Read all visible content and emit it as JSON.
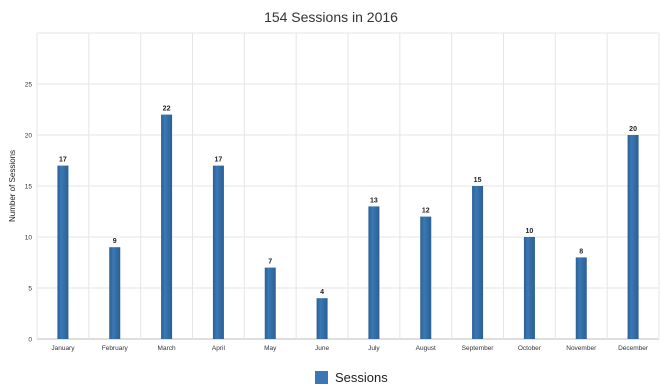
{
  "chart_data": {
    "type": "bar",
    "title": "154 Sessions in 2016",
    "xlabel": "",
    "ylabel": "Number of Sessions",
    "categories": [
      "January",
      "February",
      "March",
      "April",
      "May",
      "June",
      "July",
      "August",
      "September",
      "October",
      "November",
      "December"
    ],
    "series": [
      {
        "name": "Sessions",
        "values": [
          17,
          9,
          22,
          17,
          7,
          4,
          13,
          12,
          15,
          10,
          8,
          20
        ]
      }
    ],
    "ylim": [
      0,
      30
    ],
    "yticks": [
      0,
      5,
      10,
      15,
      20,
      25
    ],
    "grid": true,
    "legend_position": "bottom-center",
    "colors": {
      "bar": "#3a78b5",
      "bar_dark": "#2b5f93",
      "grid": "#e6e6e6"
    }
  }
}
